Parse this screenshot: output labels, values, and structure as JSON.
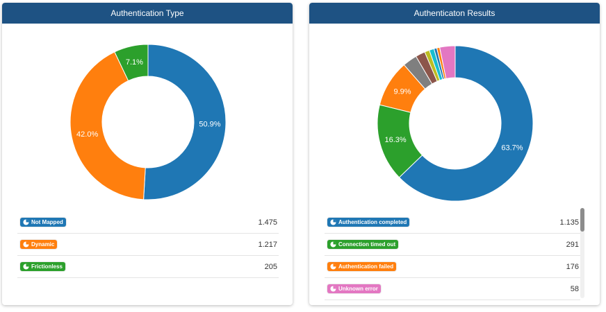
{
  "panels": [
    {
      "title": "Authentication Type",
      "items": [
        {
          "label": "Not Mapped",
          "value": "1.475",
          "color": "#1f77b4",
          "percent_label": "50.9%"
        },
        {
          "label": "Dynamic",
          "value": "1.217",
          "color": "#ff7f0e",
          "percent_label": "42.0%"
        },
        {
          "label": "Frictionless",
          "value": "205",
          "color": "#2ca02c",
          "percent_label": "7.1%"
        }
      ]
    },
    {
      "title": "Authenticaton Results",
      "items": [
        {
          "label": "Authentication completed",
          "value": "1.135",
          "color": "#1f77b4",
          "percent_label": "63.7%"
        },
        {
          "label": "Connection timed out",
          "value": "291",
          "color": "#2ca02c",
          "percent_label": "16.3%"
        },
        {
          "label": "Authentication failed",
          "value": "176",
          "color": "#ff7f0e",
          "percent_label": "9.9%"
        },
        {
          "label": "Unknown error",
          "value": "58",
          "color": "#e377c2",
          "percent_label": ""
        }
      ]
    }
  ],
  "chart_data": [
    {
      "type": "pie",
      "title": "Authentication Type",
      "categories": [
        "Not Mapped",
        "Dynamic",
        "Frictionless"
      ],
      "values": [
        1475,
        1217,
        205
      ],
      "percent_labels": [
        "50.9%",
        "42.0%",
        "7.1%"
      ],
      "colors": [
        "#1f77b4",
        "#ff7f0e",
        "#2ca02c"
      ],
      "donut": true
    },
    {
      "type": "pie",
      "title": "Authenticaton Results",
      "categories": [
        "Authentication completed",
        "Connection timed out",
        "Authentication failed",
        "Unknown error"
      ],
      "values": [
        1135,
        291,
        176,
        58
      ],
      "unlisted_slice_percents": [
        3.0,
        2.0,
        1.0,
        1.0,
        0.6,
        0.6
      ],
      "percent_labels": [
        "63.7%",
        "16.3%",
        "9.9%",
        ""
      ],
      "colors": [
        "#1f77b4",
        "#2ca02c",
        "#ff7f0e",
        "#7f7f7f",
        "#8c564b",
        "#bcbd22",
        "#17becf",
        "#1f77b4",
        "#ff7f0e",
        "#e377c2"
      ],
      "donut": true
    }
  ]
}
